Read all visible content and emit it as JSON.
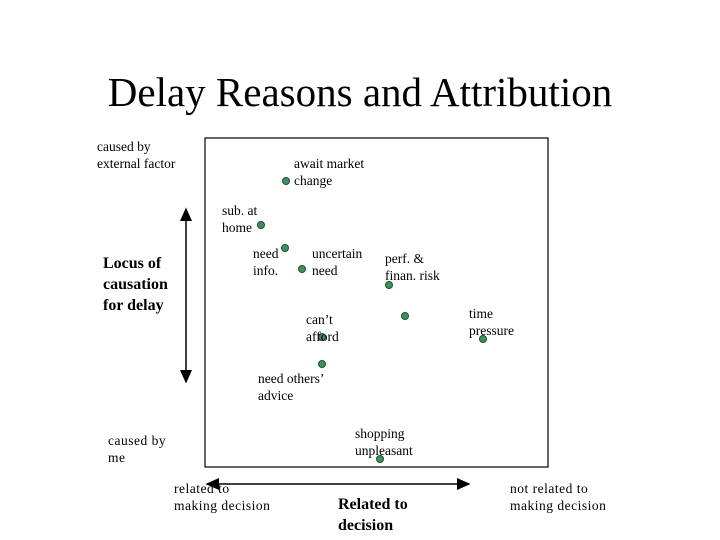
{
  "title": "Delay Reasons and Attribution",
  "y_axis": {
    "top": "caused by\nexternal factor",
    "title": "Locus of\ncausation\nfor delay",
    "bottom": "caused by\nme"
  },
  "x_axis": {
    "left": "related to\nmaking decision",
    "title": "Related to\ndecision",
    "right": "not related to\nmaking decision"
  },
  "nodes": [
    {
      "label": "await market\nchange"
    },
    {
      "label": "sub. at\nhome"
    },
    {
      "label": "need\ninfo."
    },
    {
      "label": "uncertain\nneed"
    },
    {
      "label": "perf. &\nfinan. risk"
    },
    {
      "label": "time\npressure"
    },
    {
      "label": "can’t\nafford"
    },
    {
      "label": "need others’\nadvice"
    },
    {
      "label": "shopping\nunpleasant"
    }
  ]
}
